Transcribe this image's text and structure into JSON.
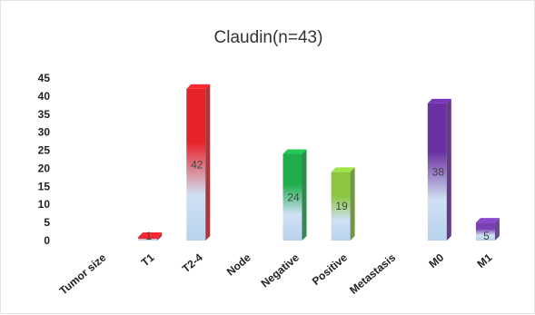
{
  "chart_data": {
    "type": "bar",
    "title": "Claudin(n=43)",
    "categories": [
      "Tumor size",
      "T1",
      "T2-4",
      "Node",
      "Negative",
      "Positive",
      "Metastasis",
      "M0",
      "M1"
    ],
    "values": [
      null,
      1,
      42,
      null,
      24,
      19,
      null,
      38,
      5
    ],
    "data_labels": [
      "",
      "1",
      "42",
      "",
      "24",
      "19",
      "",
      "38",
      "5"
    ],
    "bar_colors": [
      "",
      "#e8222a",
      "#e8222a",
      "",
      "#1fae4b",
      "#8cc63f",
      "",
      "#6a2fa0",
      "#7b3fb5"
    ],
    "ylim": [
      0,
      45
    ],
    "yticks": [
      0,
      5,
      10,
      15,
      20,
      25,
      30,
      35,
      40,
      45
    ],
    "xlabel": "",
    "ylabel": "",
    "grid": false,
    "legend": "none"
  }
}
